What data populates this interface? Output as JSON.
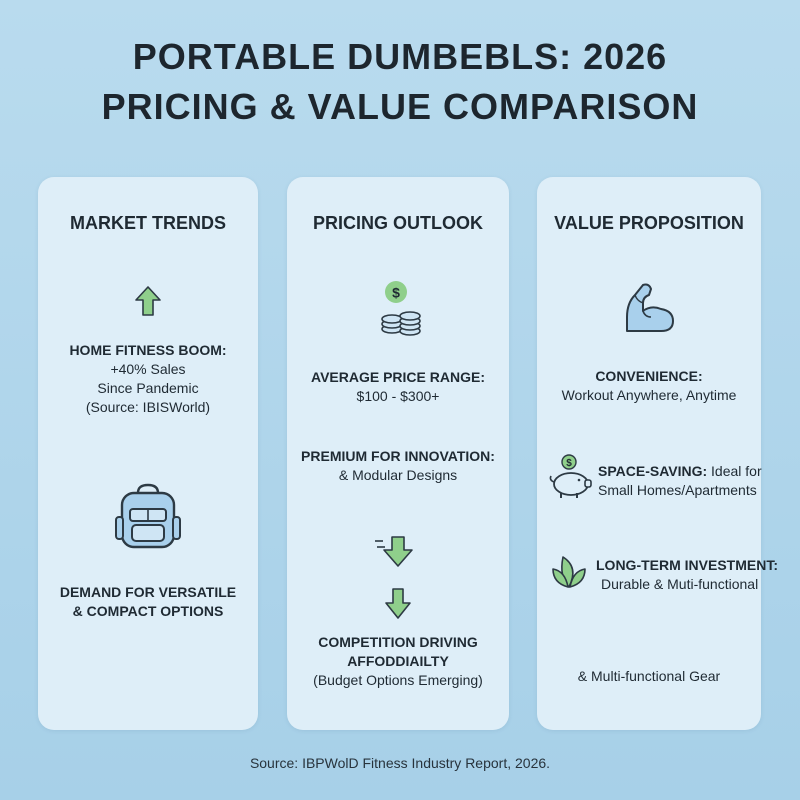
{
  "title": {
    "line1": "PORTABLE DUMBEBLS: 2026",
    "line2": "PRICING & VALUE COMPARISON"
  },
  "cards": {
    "trends": {
      "heading": "MARKET TRENDS",
      "item1": {
        "icon": "arrow-up-icon",
        "title": "HOME FITNESS BOOM:",
        "line1": "+40% Sales",
        "line2": "Since Pandemic",
        "line3": "(Source: IBISWorld)"
      },
      "item2": {
        "icon": "backpack-icon",
        "line1": "DEMAND FOR VERSATILE",
        "line2": "& COMPACT OPTIONS"
      }
    },
    "pricing": {
      "heading": "PRICING OUTLOOK",
      "item1": {
        "icon": "dollar-coins-icon",
        "title": "AVERAGE PRICE RANGE:",
        "line1": "$100 - $300+"
      },
      "item2": {
        "title": "PREMIUM FOR INNOVATION:",
        "line1": "& Modular Designs"
      },
      "item3": {
        "icon": "arrow-down-icon",
        "title_line1": "COMPETITION DRIVING",
        "title_line2": "AFFODDIAILTY",
        "line1": "(Budget Options Emerging)"
      }
    },
    "value": {
      "heading": "VALUE PROPOSITION",
      "item1": {
        "icon": "flexed-arm-icon",
        "title": "CONVENIENCE:",
        "line1": "Workout Anywhere, Anytime"
      },
      "item2": {
        "icon": "piggy-bank-icon",
        "title": "SPACE-SAVING:",
        "line1_rest": " Ideal for",
        "line2": "Small Homes/Apartments"
      },
      "item3": {
        "icon": "leaf-icon",
        "title": "LONG-TERM INVESTMENT:",
        "line1": "Durable & Muti-functional Gear"
      },
      "item4": {
        "line1": "& Multi-functional Gear"
      }
    }
  },
  "source": "Source: IBPWolD Fitness Industry Report, 2026.",
  "colors": {
    "background": "#b9dbee",
    "card": "#deeef8",
    "icon_green": "#8fcf8b",
    "icon_blue": "#a9d0ec",
    "icon_stroke": "#2d3a44"
  }
}
